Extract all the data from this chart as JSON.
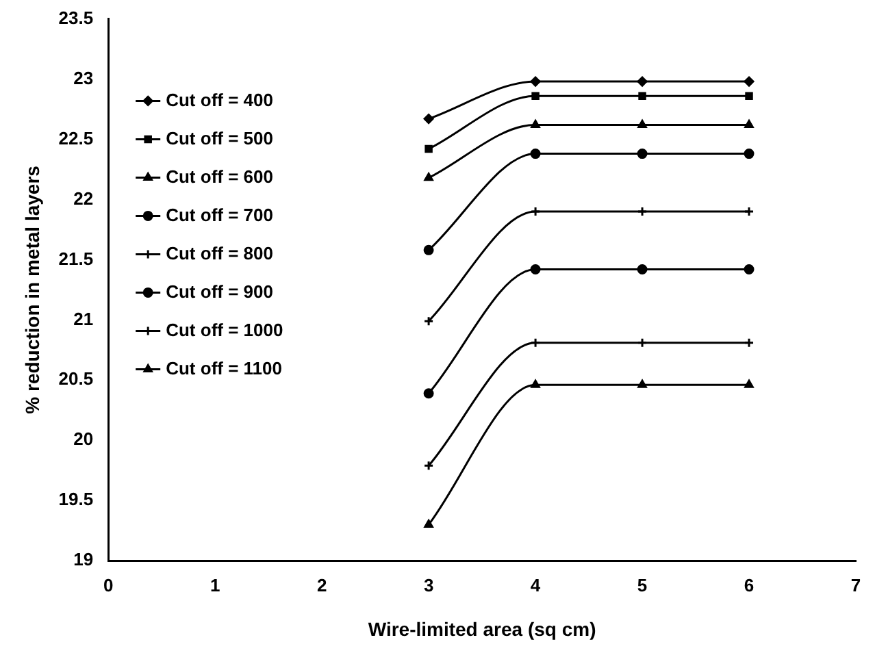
{
  "chart_data": {
    "type": "line",
    "xlabel": "Wire-limited area (sq cm)",
    "ylabel": "% reduction in metal layers",
    "xlim": [
      0,
      7
    ],
    "xticks": [
      0,
      1,
      2,
      3,
      4,
      5,
      6,
      7
    ],
    "ylim": [
      19,
      23.5
    ],
    "yticks": [
      19,
      19.5,
      20,
      20.5,
      21,
      21.5,
      22,
      22.5,
      23,
      23.5
    ],
    "x": [
      3,
      4,
      5,
      6
    ],
    "grid": false,
    "legend": "left",
    "series": [
      {
        "name": "Cut off = 400",
        "color": "#000000",
        "marker": "diamond",
        "values": [
          22.67,
          22.98,
          22.98,
          22.98
        ]
      },
      {
        "name": "Cut off = 500",
        "color": "#000000",
        "marker": "square",
        "values": [
          22.42,
          22.86,
          22.86,
          22.86
        ]
      },
      {
        "name": "Cut off = 600",
        "color": "#000000",
        "marker": "triangle",
        "values": [
          22.18,
          22.62,
          22.62,
          22.62
        ]
      },
      {
        "name": "Cut off = 700",
        "color": "#000000",
        "marker": "circle",
        "values": [
          21.58,
          22.38,
          22.38,
          22.38
        ]
      },
      {
        "name": "Cut off = 800",
        "color": "#000000",
        "marker": "cross",
        "values": [
          20.99,
          21.9,
          21.9,
          21.9
        ]
      },
      {
        "name": "Cut off = 900",
        "color": "#000000",
        "marker": "circle",
        "values": [
          20.39,
          21.42,
          21.42,
          21.42
        ]
      },
      {
        "name": "Cut off = 1000",
        "color": "#000000",
        "marker": "cross",
        "values": [
          19.79,
          20.81,
          20.81,
          20.81
        ]
      },
      {
        "name": "Cut off = 1100",
        "color": "#000000",
        "marker": "triangle",
        "values": [
          19.3,
          20.46,
          20.46,
          20.46
        ]
      }
    ]
  }
}
